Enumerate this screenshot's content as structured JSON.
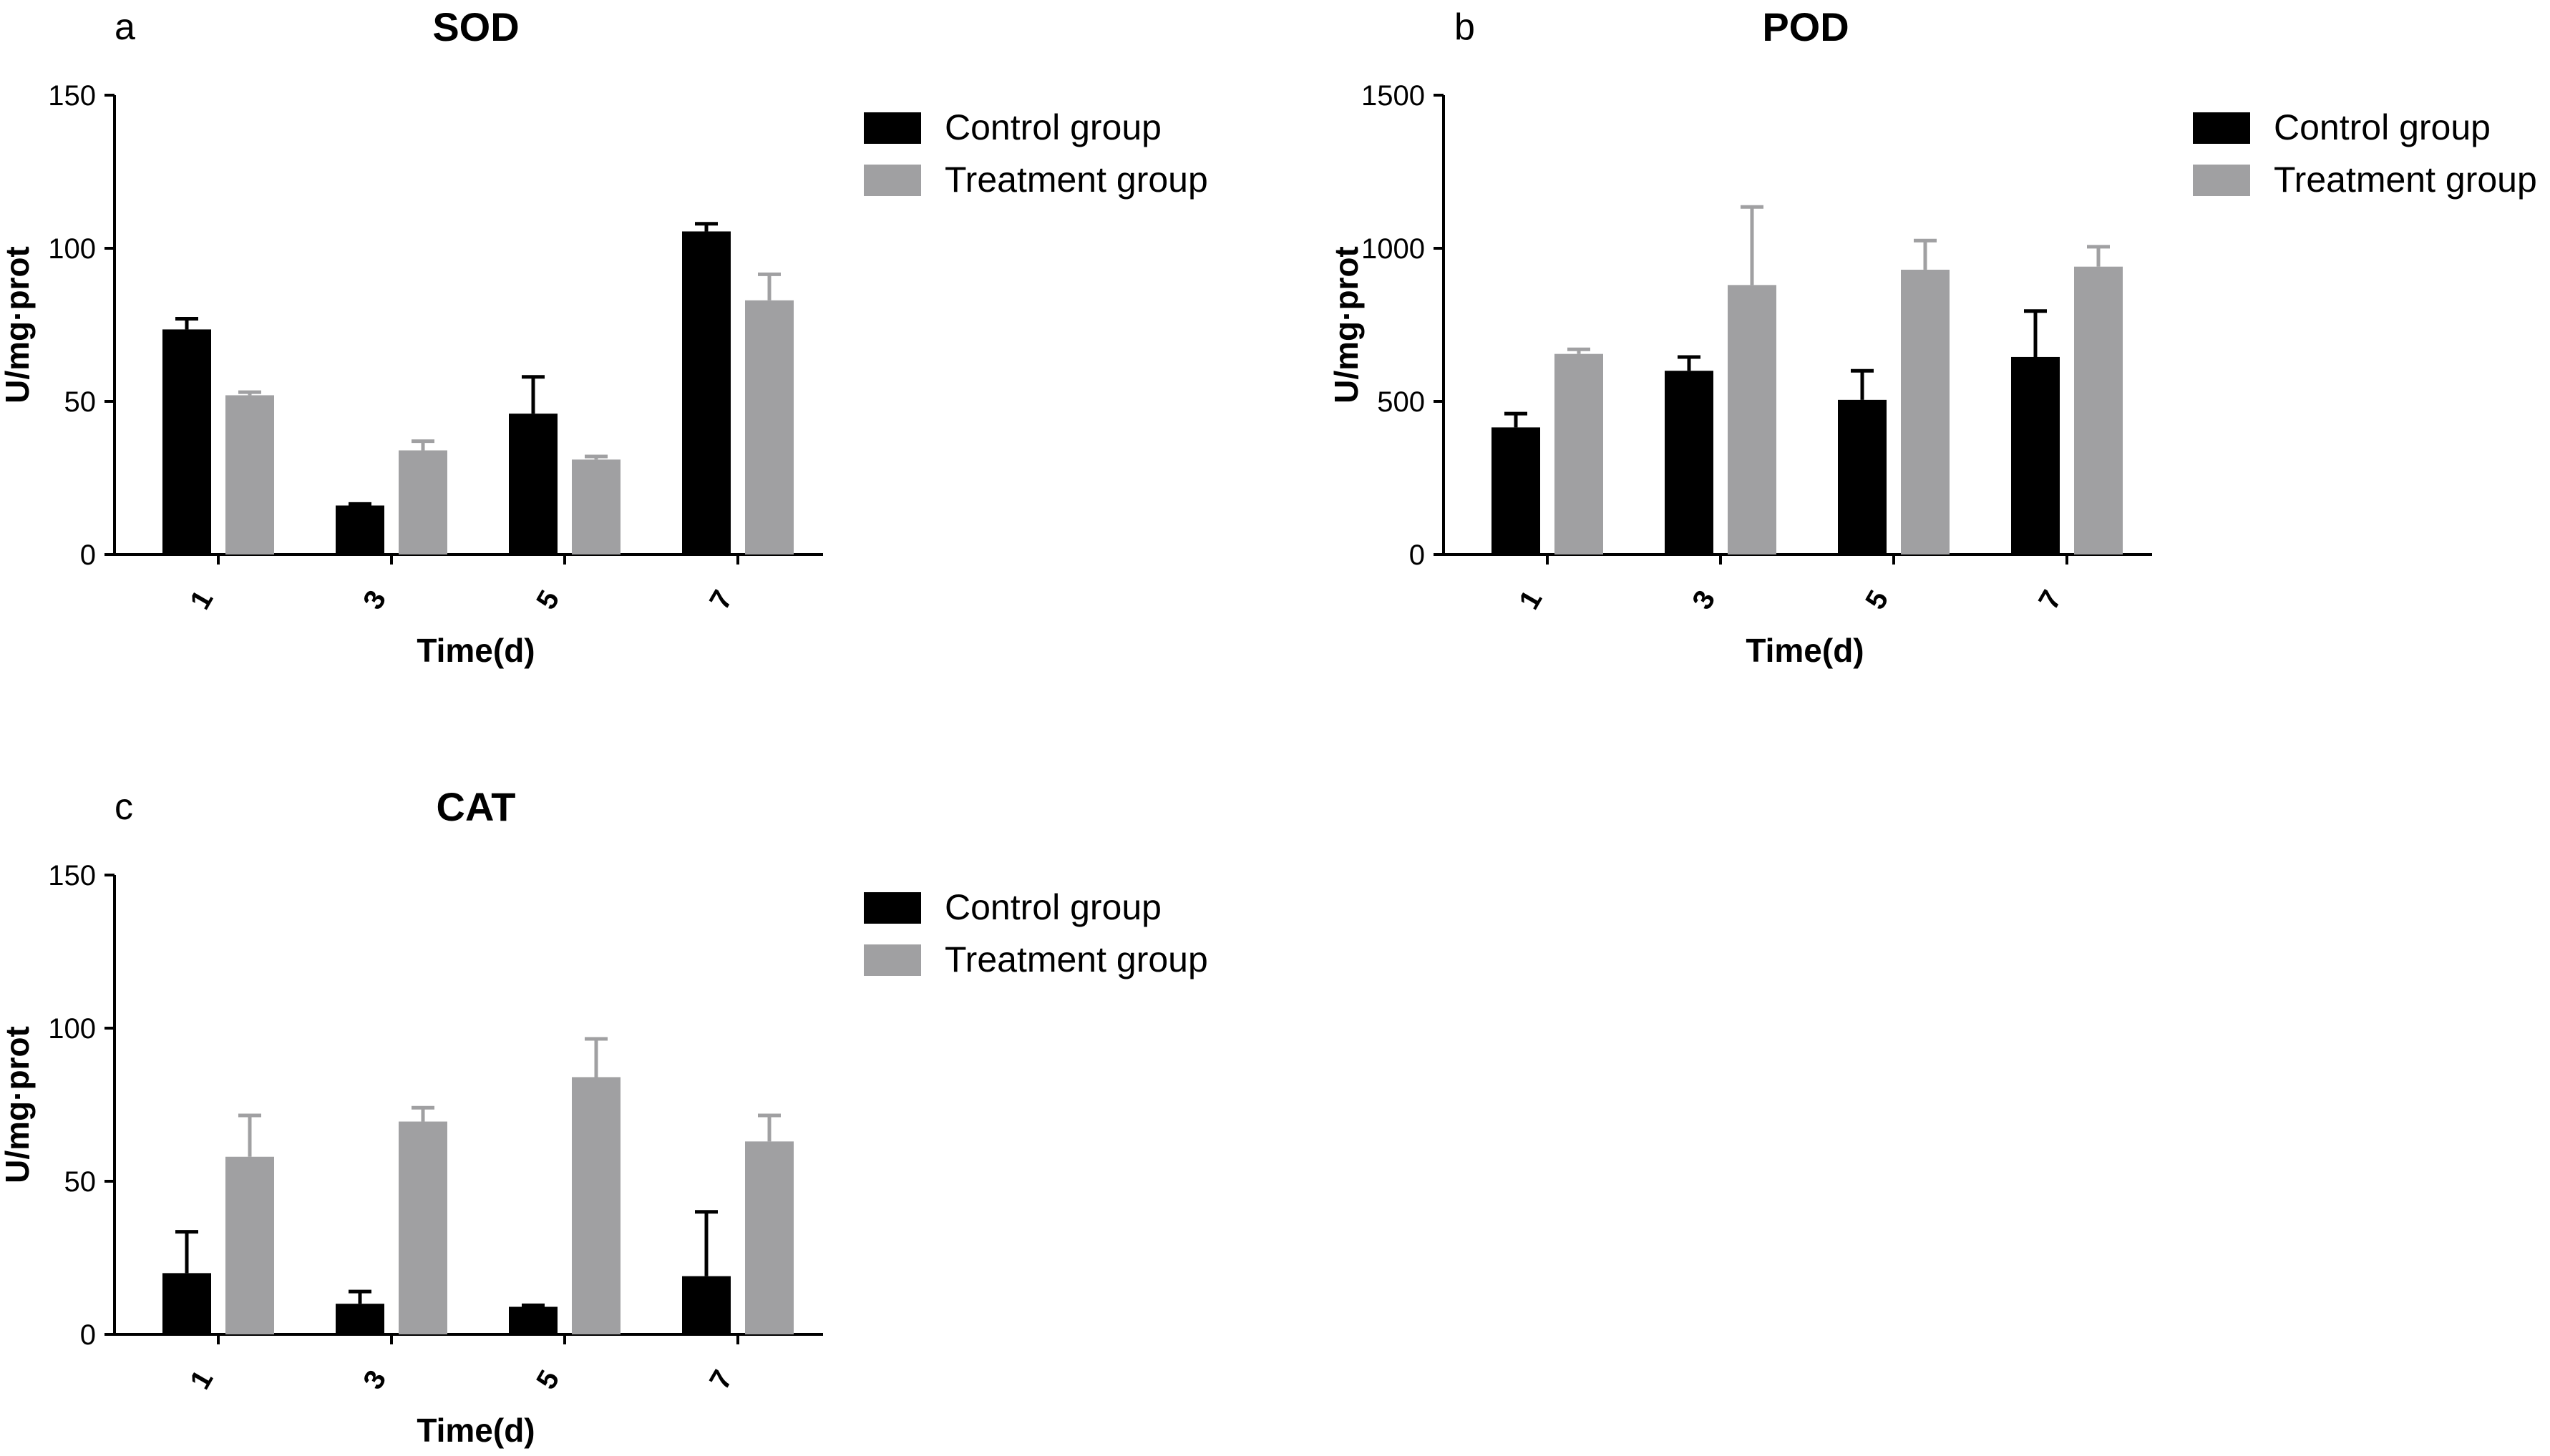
{
  "figure": {
    "colors": {
      "control": "#000000",
      "treatment": "#a0a0a2",
      "axis": "#000000"
    }
  },
  "chart_data": [
    {
      "panel": "a",
      "type": "bar",
      "title": "SOD",
      "xlabel": "Time(d)",
      "ylabel": "U/mg·prot",
      "categories": [
        "1",
        "3",
        "5",
        "7"
      ],
      "ylim": [
        0,
        150
      ],
      "yticks": [
        "0",
        "50",
        "100",
        "150"
      ],
      "legend_position": "right",
      "series": [
        {
          "name": "Control group",
          "values": [
            73.5,
            16,
            46,
            105.5
          ],
          "errors": [
            3.5,
            0.5,
            12,
            2.5
          ]
        },
        {
          "name": "Treatment group",
          "values": [
            52,
            34,
            31,
            83
          ],
          "errors": [
            1,
            3,
            1,
            8.5
          ]
        }
      ]
    },
    {
      "panel": "b",
      "type": "bar",
      "title": "POD",
      "xlabel": "Time(d)",
      "ylabel": "U/mg·prot",
      "categories": [
        "1",
        "3",
        "5",
        "7"
      ],
      "ylim": [
        0,
        1500
      ],
      "yticks": [
        "0",
        "500",
        "1000",
        "1500"
      ],
      "legend_position": "right",
      "series": [
        {
          "name": "Control group",
          "values": [
            415,
            600,
            505,
            645
          ],
          "errors": [
            45,
            45,
            95,
            150
          ]
        },
        {
          "name": "Treatment group",
          "values": [
            655,
            880,
            930,
            940
          ],
          "errors": [
            15,
            255,
            95,
            65
          ]
        }
      ]
    },
    {
      "panel": "c",
      "type": "bar",
      "title": "CAT",
      "xlabel": "Time(d)",
      "ylabel": "U/mg·prot",
      "categories": [
        "1",
        "3",
        "5",
        "7"
      ],
      "ylim": [
        0,
        150
      ],
      "yticks": [
        "0",
        "50",
        "100",
        "150"
      ],
      "legend_position": "right",
      "series": [
        {
          "name": "Control group",
          "values": [
            20,
            10,
            9,
            19
          ],
          "errors": [
            13.5,
            4,
            0.5,
            21
          ]
        },
        {
          "name": "Treatment group",
          "values": [
            58,
            69.5,
            84,
            63
          ],
          "errors": [
            13.5,
            4.5,
            12.5,
            8.5
          ]
        }
      ]
    }
  ]
}
